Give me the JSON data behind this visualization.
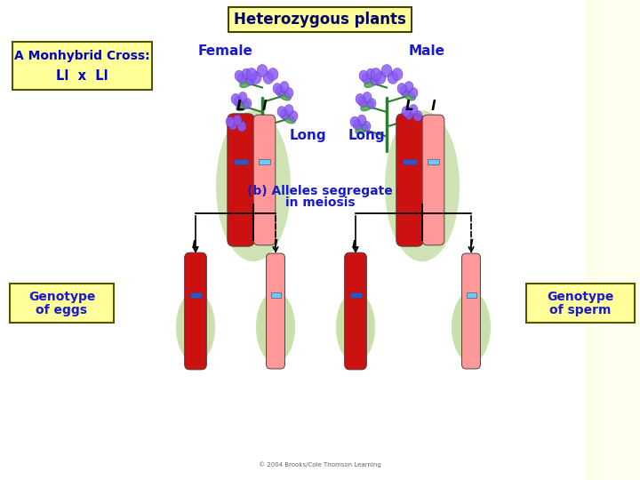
{
  "title": "Heterozygous plants",
  "title_bg": "#FFFF99",
  "title_border": "#000000",
  "title_fontsize": 12,
  "title_color": "#000000",
  "left_box_line1": "A Monhybrid Cross:",
  "left_box_line2": "Ll  x  Ll",
  "left_box_bg": "#FFFF99",
  "left_box_border": "#000000",
  "female_label": "Female",
  "male_label": "Male",
  "label_color": "#1A1ACC",
  "long_label": "Long",
  "alleles_text_1": "(b) Alleles segregate",
  "alleles_text_2": "in meiosis",
  "genotype_eggs_1": "Genotype",
  "genotype_eggs_2": "of eggs",
  "genotype_sperm_1": "Genotype",
  "genotype_sperm_2": "of sperm",
  "genotype_box_bg": "#FFFF99",
  "chrom_dark": "#CC1111",
  "chrom_light": "#FF9999",
  "centromere_dark": "#3355CC",
  "centromere_light": "#66CCFF",
  "green_glow": "#88BB44",
  "background": "#FFFFFF",
  "copyright": "© 2004 Brooks/Cole Thomson Learning"
}
